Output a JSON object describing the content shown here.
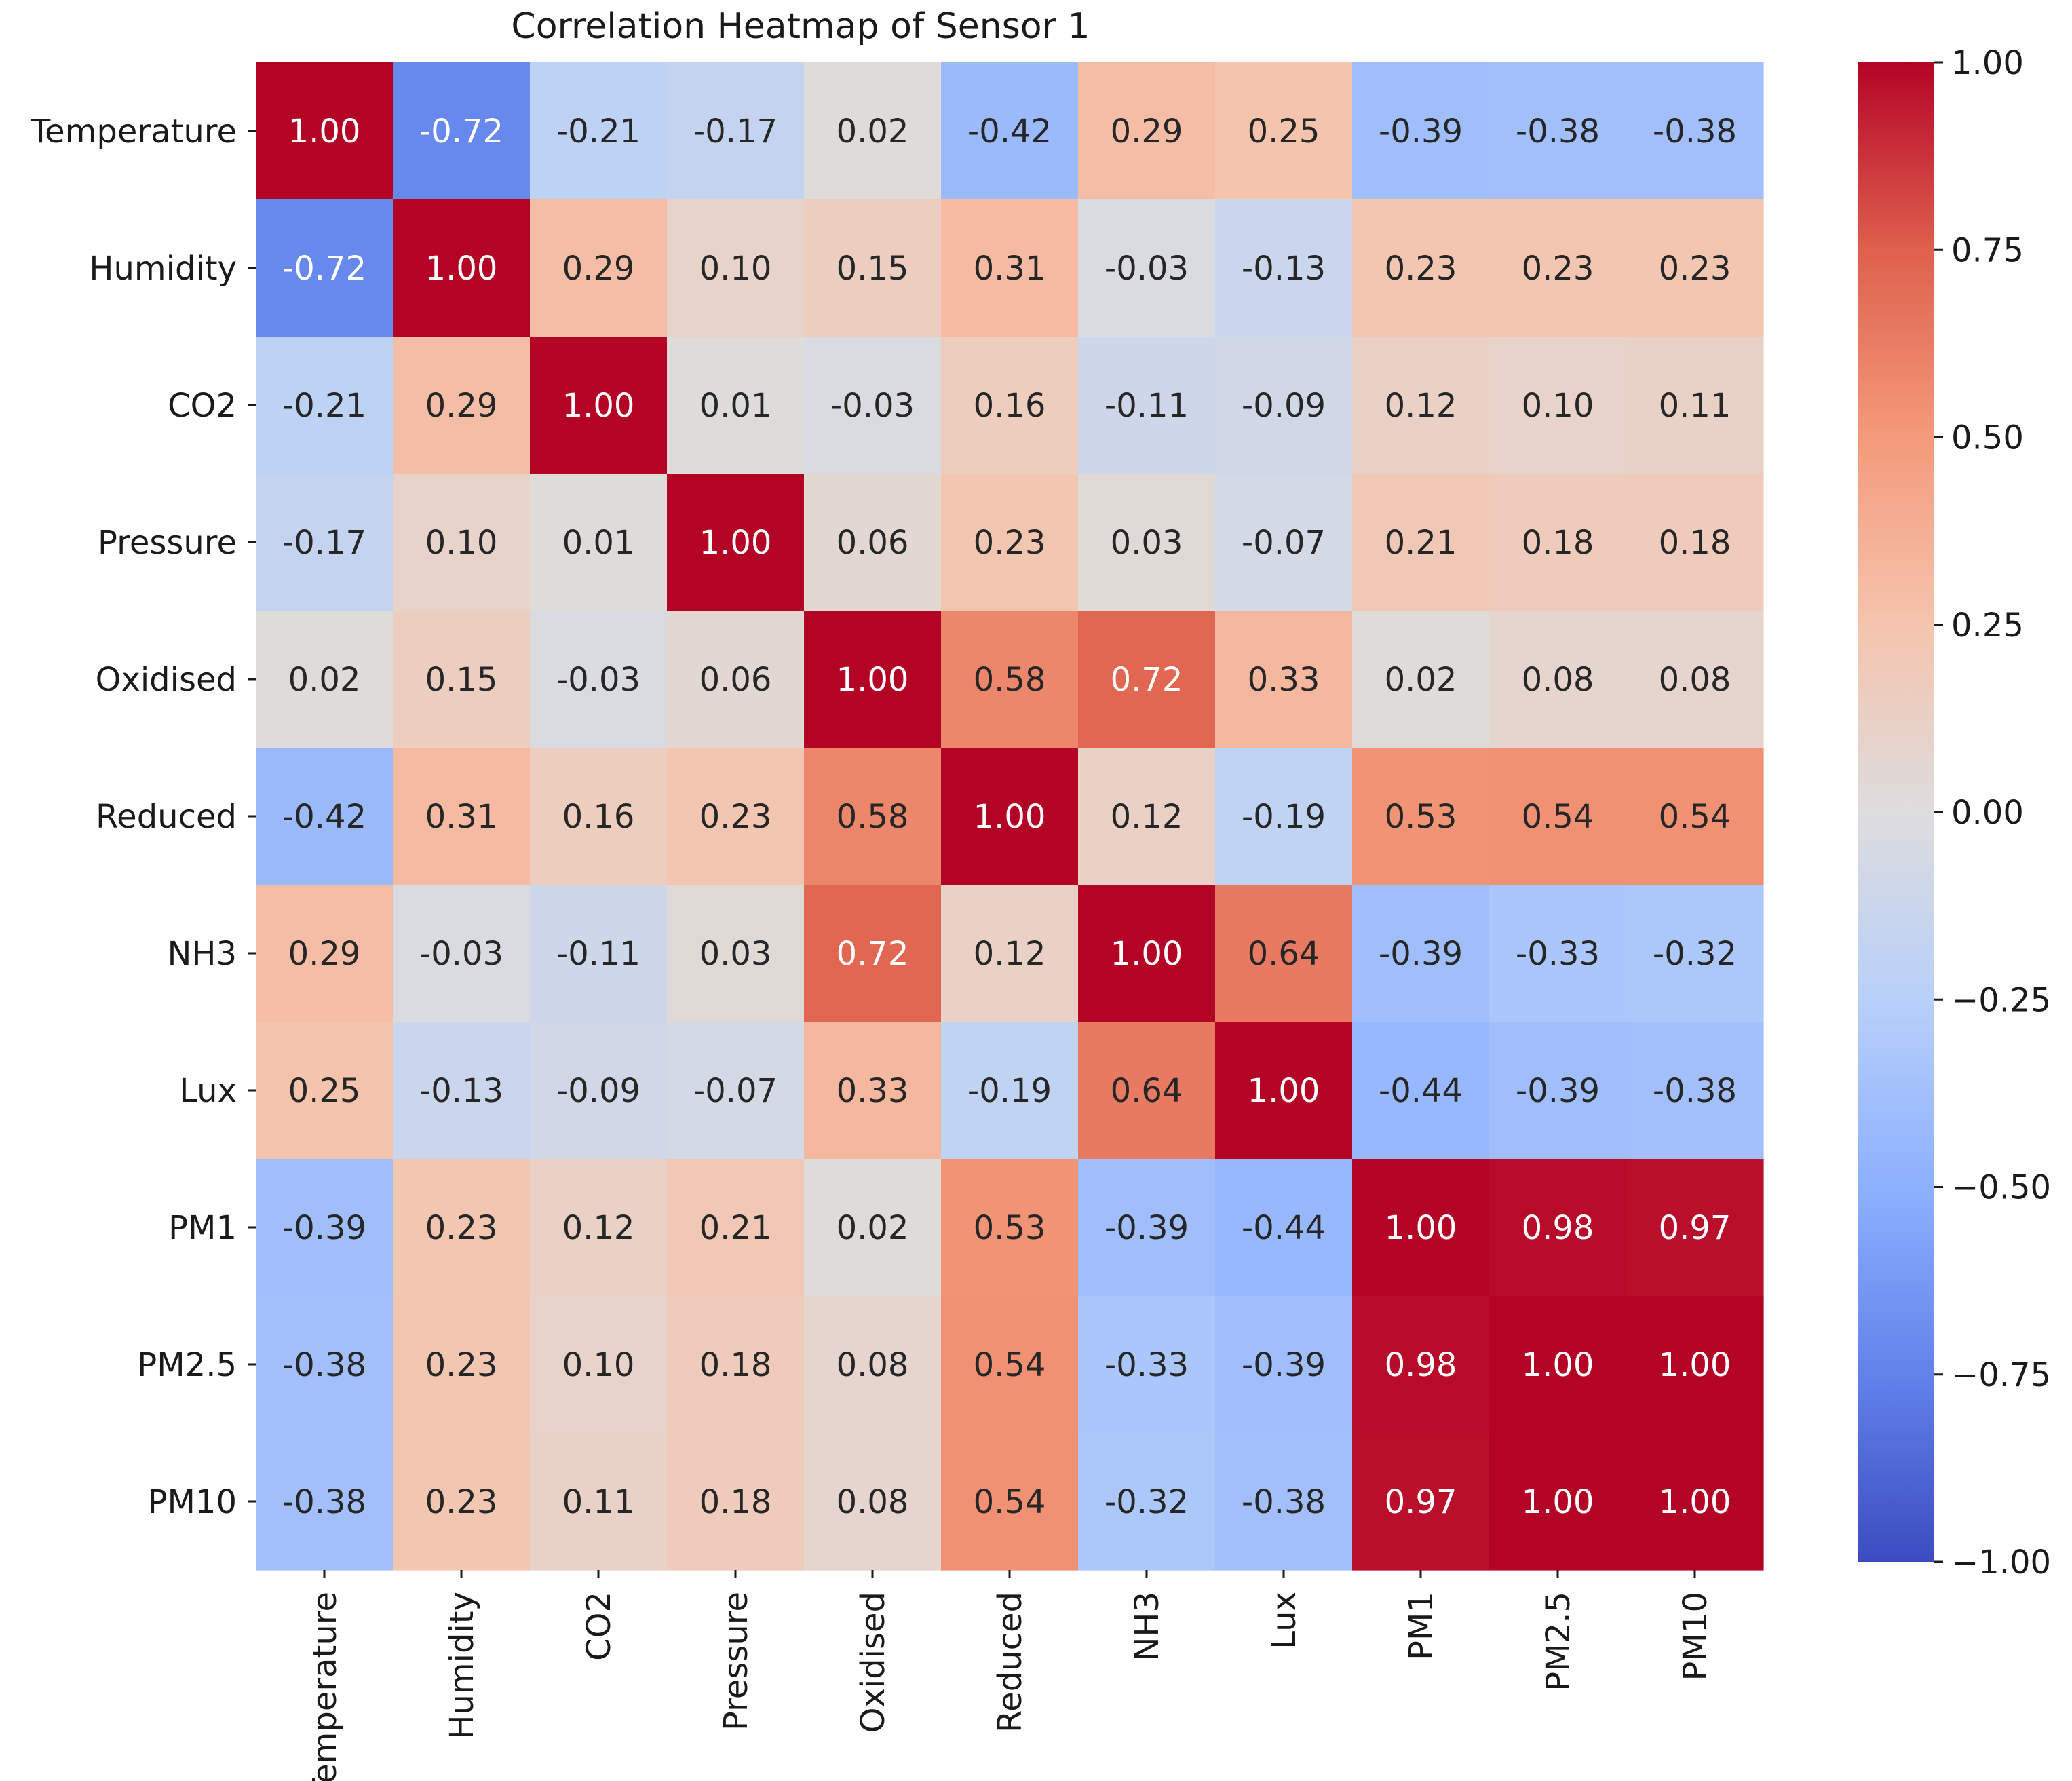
{
  "chart_data": {
    "type": "heatmap",
    "title": "Correlation Heatmap of Sensor 1",
    "row_labels": [
      "Temperature",
      "Humidity",
      "CO2",
      "Pressure",
      "Oxidised",
      "Reduced",
      "NH3",
      "Lux",
      "PM1",
      "PM2.5",
      "PM10"
    ],
    "col_labels": [
      "Temperature",
      "Humidity",
      "CO2",
      "Pressure",
      "Oxidised",
      "Reduced",
      "NH3",
      "Lux",
      "PM1",
      "PM2.5",
      "PM10"
    ],
    "values": [
      [
        1.0,
        -0.72,
        -0.21,
        -0.17,
        0.02,
        -0.42,
        0.29,
        0.25,
        -0.39,
        -0.38,
        -0.38
      ],
      [
        -0.72,
        1.0,
        0.29,
        0.1,
        0.15,
        0.31,
        -0.03,
        -0.13,
        0.23,
        0.23,
        0.23
      ],
      [
        -0.21,
        0.29,
        1.0,
        0.01,
        -0.03,
        0.16,
        -0.11,
        -0.09,
        0.12,
        0.1,
        0.11
      ],
      [
        -0.17,
        0.1,
        0.01,
        1.0,
        0.06,
        0.23,
        0.03,
        -0.07,
        0.21,
        0.18,
        0.18
      ],
      [
        0.02,
        0.15,
        -0.03,
        0.06,
        1.0,
        0.58,
        0.72,
        0.33,
        0.02,
        0.08,
        0.08
      ],
      [
        -0.42,
        0.31,
        0.16,
        0.23,
        0.58,
        1.0,
        0.12,
        -0.19,
        0.53,
        0.54,
        0.54
      ],
      [
        0.29,
        -0.03,
        -0.11,
        0.03,
        0.72,
        0.12,
        1.0,
        0.64,
        -0.39,
        -0.33,
        -0.32
      ],
      [
        0.25,
        -0.13,
        -0.09,
        -0.07,
        0.33,
        -0.19,
        0.64,
        1.0,
        -0.44,
        -0.39,
        -0.38
      ],
      [
        -0.39,
        0.23,
        0.12,
        0.21,
        0.02,
        0.53,
        -0.39,
        -0.44,
        1.0,
        0.98,
        0.97
      ],
      [
        -0.38,
        0.23,
        0.1,
        0.18,
        0.08,
        0.54,
        -0.33,
        -0.39,
        0.98,
        1.0,
        1.0
      ],
      [
        -0.38,
        0.23,
        0.11,
        0.18,
        0.08,
        0.54,
        -0.32,
        -0.38,
        0.97,
        1.0,
        1.0
      ]
    ],
    "colormap": "coolwarm",
    "vmin": -1.0,
    "vmax": 1.0,
    "colorbar_ticks": [
      1.0,
      0.75,
      0.5,
      0.25,
      0.0,
      -0.25,
      -0.5,
      -0.75,
      -1.0
    ],
    "colorbar_tick_labels": [
      "1.00",
      "0.75",
      "0.50",
      "0.25",
      "0.00",
      "−0.25",
      "−0.50",
      "−0.75",
      "−1.00"
    ],
    "annotation_format": "2 decimals",
    "colors": {
      "cold_end": "#3b4cc0",
      "neutral": "#dddddd",
      "hot_end": "#b40426"
    },
    "grid": false,
    "legend": "colorbar-right"
  }
}
